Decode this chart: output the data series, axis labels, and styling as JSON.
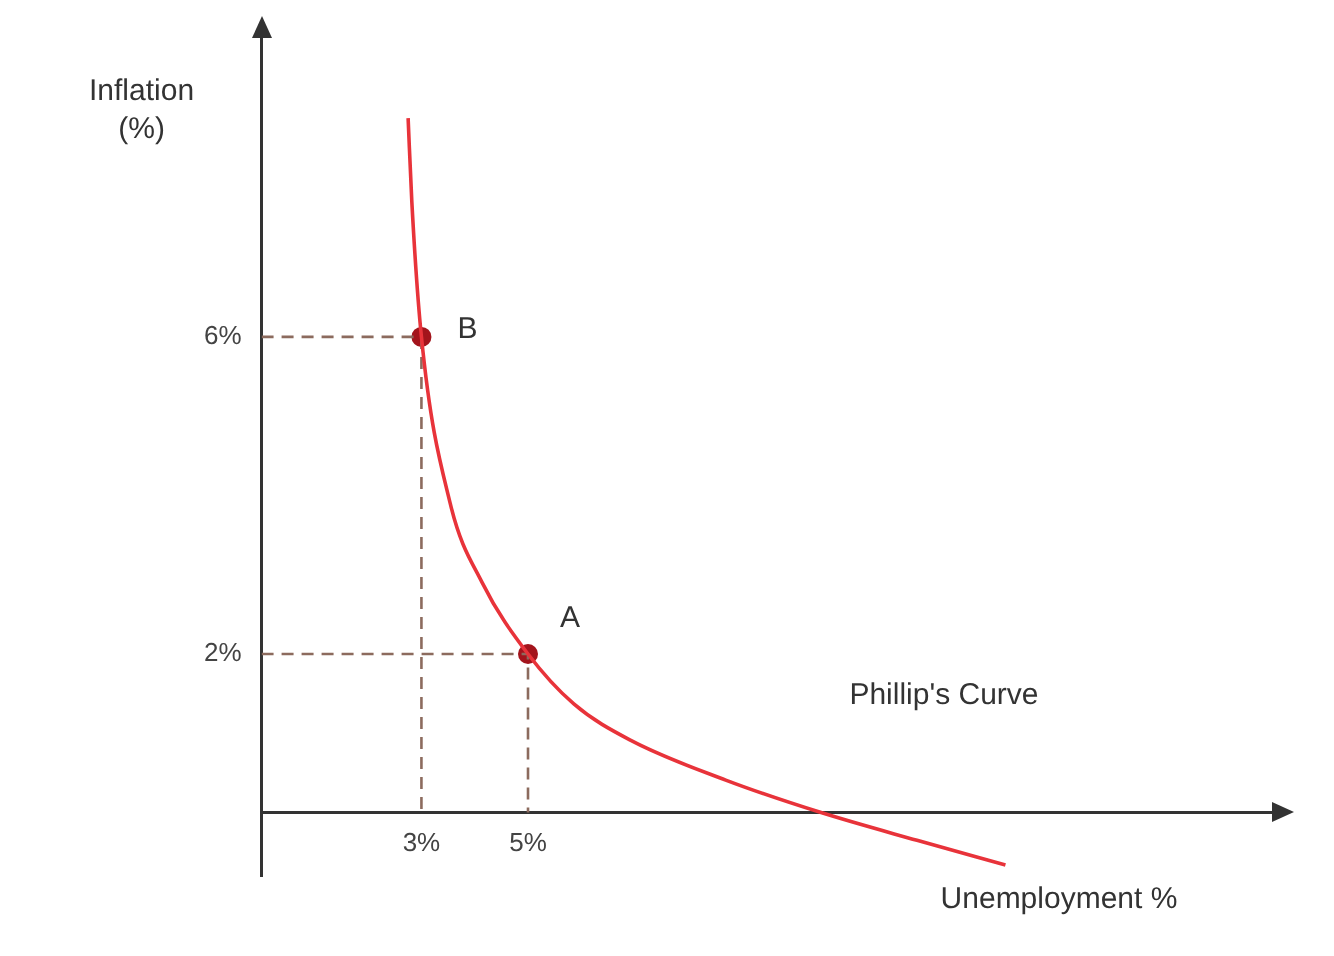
{
  "chart_data": {
    "type": "line",
    "xlabel": "Unemployment %",
    "ylabel": "Inflation (%)",
    "annotations": [
      {
        "text": "B",
        "x": 3,
        "y": 6
      },
      {
        "text": "A",
        "x": 5,
        "y": 2
      },
      "Phillip's Curve"
    ],
    "xlim": [
      0,
      19
    ],
    "ylim": [
      -0.8,
      9.8
    ],
    "xticks": [
      {
        "value": 3,
        "label": "3%"
      },
      {
        "value": 5,
        "label": "5%"
      }
    ],
    "yticks": [
      {
        "value": 2,
        "label": "2%"
      },
      {
        "value": 6,
        "label": "6%"
      }
    ],
    "grid": false,
    "legend": false,
    "series": [
      {
        "color": "#e8333a",
        "marker": "none",
        "line_style": "solid",
        "x": [
          2.75,
          2.82,
          3,
          3.54,
          4.14,
          5,
          5.86,
          6.93,
          8.71,
          10.5,
          12.3,
          13.96
        ],
        "values": [
          8.76,
          7.7,
          6,
          3.9,
          2.9,
          2,
          1.37,
          0.91,
          0.41,
          0,
          -0.35,
          -0.66
        ]
      },
      {
        "color": "#8c6b5e",
        "marker": "none",
        "line_style": "dashed",
        "x": [
          0,
          3,
          3
        ],
        "values": [
          6,
          6,
          0
        ]
      },
      {
        "color": "#8c6b5e",
        "marker": "none",
        "line_style": "dashed",
        "x": [
          0,
          5,
          5
        ],
        "values": [
          2,
          2,
          0
        ]
      },
      {
        "type": "scatter",
        "color": "#a3141c",
        "marker": "circle",
        "x": [
          3,
          5
        ],
        "values": [
          6,
          2
        ]
      }
    ]
  }
}
